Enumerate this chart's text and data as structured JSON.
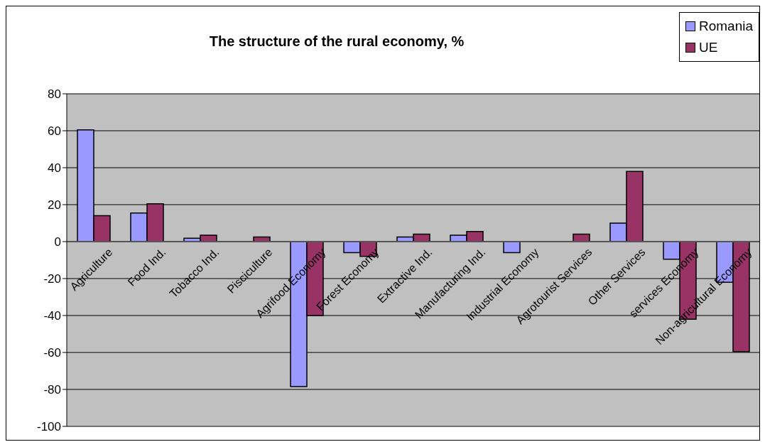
{
  "chart_data": {
    "type": "bar",
    "title": "The structure of the rural economy, %",
    "categories": [
      "Agriculture",
      "Food Ind.",
      "Tobacco Ind.",
      "Pisciculture",
      "Agrifood Economy",
      "Forest Economy",
      "Extractive Ind.",
      "Manufacturing Ind.",
      "Industrial Economy",
      "Agrotourist  Services",
      "Other Services",
      "services Economy",
      "Non-agricultural Economy"
    ],
    "series": [
      {
        "name": "Romania",
        "color": "#9999ff",
        "values": [
          60.5,
          15.5,
          1.8,
          null,
          -78.5,
          -6,
          2.5,
          3.5,
          -6,
          null,
          10,
          -9.5,
          -22
        ]
      },
      {
        "name": "UE",
        "color": "#993366",
        "values": [
          14,
          20.5,
          3.5,
          2.5,
          -40,
          -8,
          4,
          5.5,
          null,
          4,
          38,
          -42,
          -59.5
        ]
      }
    ],
    "ylim": [
      -100,
      80
    ],
    "yticks": [
      -100,
      -80,
      -60,
      -40,
      -20,
      0,
      20,
      40,
      60,
      80
    ],
    "grid": "y",
    "legend": "top right"
  }
}
